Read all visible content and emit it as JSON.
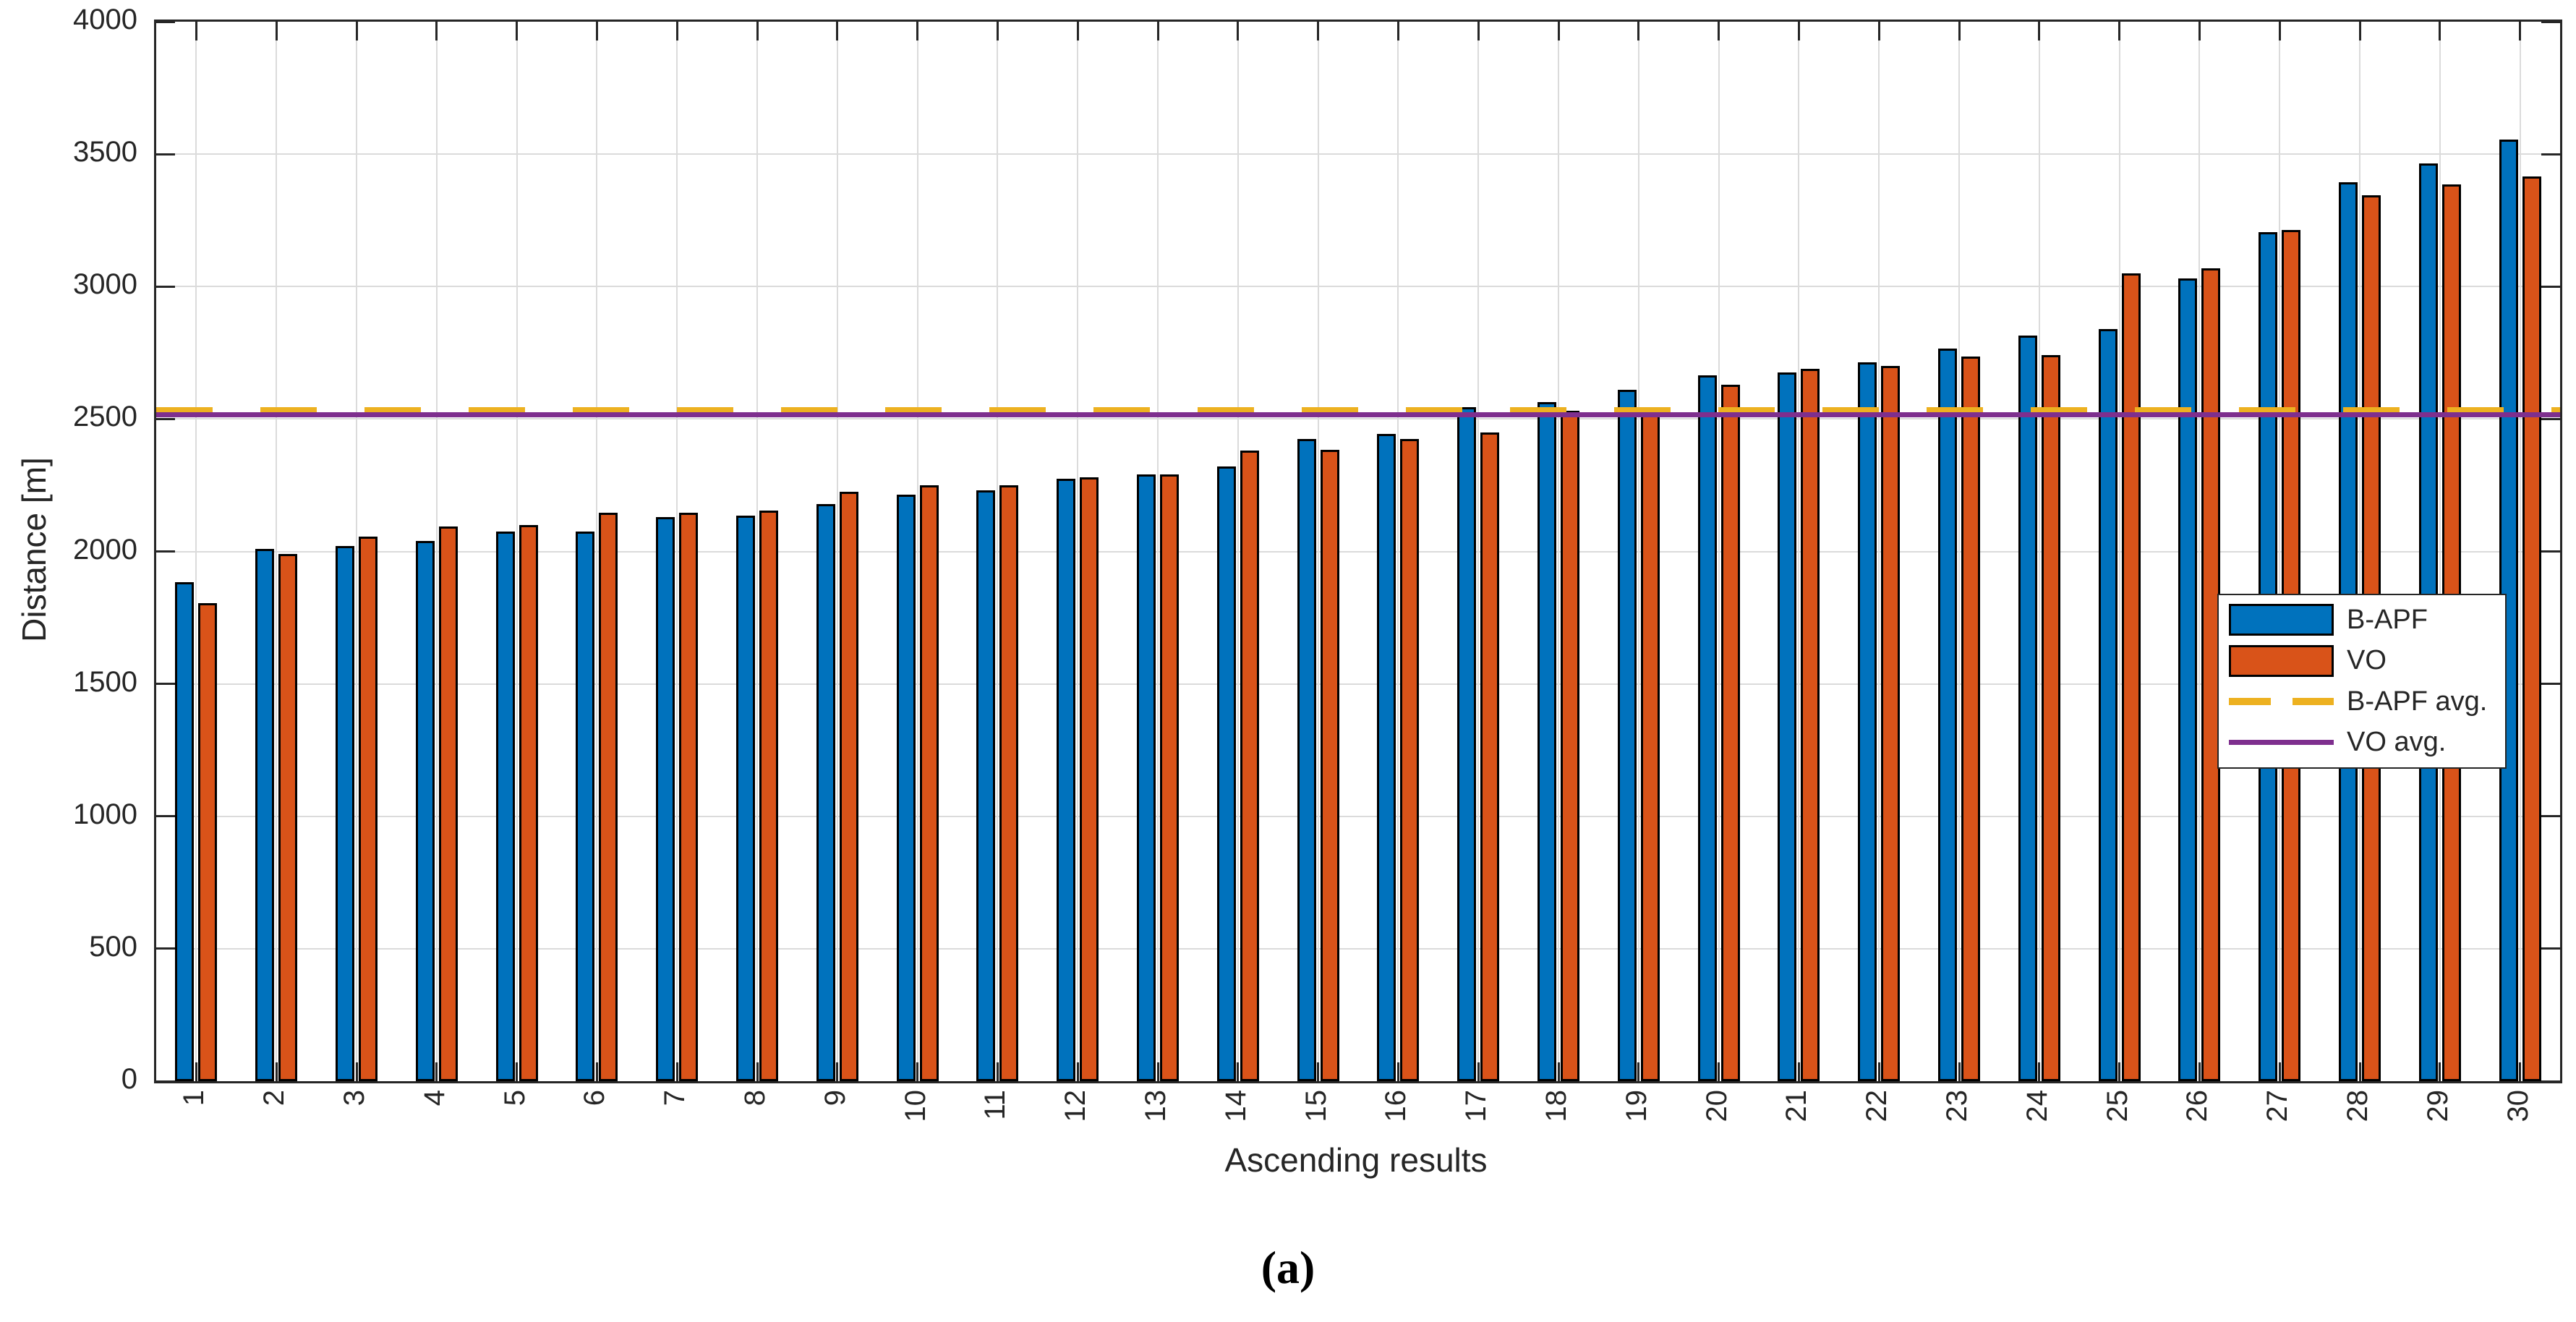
{
  "colors": {
    "b_apf": "#0072BD",
    "vo": "#D95319",
    "b_apf_avg": "#EDB120",
    "vo_avg": "#7E2F8E",
    "axis": "#262626",
    "grid": "#dbdbdb",
    "bar_edge": "#000000",
    "background": "#FFFFFF"
  },
  "chart_data": {
    "type": "bar",
    "title": "",
    "xlabel": "Ascending results",
    "ylabel": "Distance [m]",
    "caption": "(a)",
    "ylim": [
      0,
      4000
    ],
    "ytick_step": 500,
    "yticks": [
      "0",
      "500",
      "1000",
      "1500",
      "2000",
      "2500",
      "3000",
      "3500",
      "4000"
    ],
    "categories": [
      "1",
      "2",
      "3",
      "4",
      "5",
      "6",
      "7",
      "8",
      "9",
      "10",
      "11",
      "12",
      "13",
      "14",
      "15",
      "16",
      "17",
      "18",
      "19",
      "20",
      "21",
      "22",
      "23",
      "24",
      "25",
      "26",
      "27",
      "28",
      "29",
      "30"
    ],
    "grid": true,
    "legend_position": "right-middle",
    "series": [
      {
        "name": "B-APF",
        "color": "#0072BD",
        "values": [
          1885,
          2010,
          2020,
          2040,
          2075,
          2075,
          2130,
          2135,
          2180,
          2215,
          2230,
          2275,
          2290,
          2320,
          2425,
          2445,
          2545,
          2565,
          2610,
          2665,
          2675,
          2715,
          2765,
          2815,
          2840,
          3030,
          3205,
          3395,
          3465,
          3555
        ]
      },
      {
        "name": "VO",
        "color": "#D95319",
        "values": [
          1805,
          1990,
          2055,
          2095,
          2100,
          2145,
          2145,
          2155,
          2225,
          2250,
          2250,
          2280,
          2290,
          2380,
          2385,
          2425,
          2450,
          2530,
          2535,
          2630,
          2690,
          2700,
          2735,
          2740,
          3050,
          3070,
          3215,
          3345,
          3385,
          3415
        ]
      }
    ],
    "avg_lines": [
      {
        "name": "B-APF avg.",
        "value": 2530,
        "color": "#EDB120",
        "style": "dashed"
      },
      {
        "name": "VO avg.",
        "value": 2515,
        "color": "#7E2F8E",
        "style": "solid"
      }
    ],
    "legend": {
      "entries": [
        {
          "label": "B-APF",
          "swatch": "bar",
          "color": "#0072BD"
        },
        {
          "label": "VO",
          "swatch": "bar",
          "color": "#D95319"
        },
        {
          "label": "B-APF avg.",
          "swatch": "dashed-line",
          "color": "#EDB120"
        },
        {
          "label": "VO avg.",
          "swatch": "solid-line",
          "color": "#7E2F8E"
        }
      ]
    }
  }
}
